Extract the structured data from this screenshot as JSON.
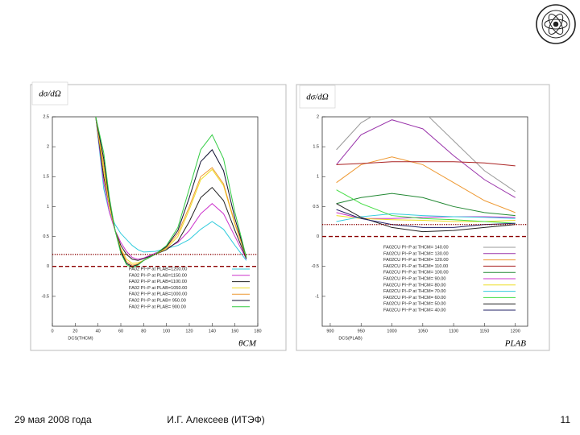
{
  "chart_data": [
    {
      "type": "line",
      "y_label": "dσ/dΩ",
      "x_label": "DCS(THCM)",
      "x_annotation": "θCM",
      "xlim": [
        0,
        180
      ],
      "xticks": [
        0,
        20,
        40,
        60,
        80,
        100,
        120,
        140,
        160,
        180
      ],
      "ylim": [
        -1,
        2.5
      ],
      "yticks": [
        -0.5,
        0,
        0.5,
        1,
        1.5,
        2,
        2.5
      ],
      "x": [
        38,
        45,
        50,
        55,
        60,
        65,
        70,
        75,
        80,
        90,
        100,
        110,
        120,
        130,
        140,
        150,
        160,
        170
      ],
      "series": [
        {
          "name": "FA02 PI−P at PLAB=1200.00",
          "color": "#33ccdd",
          "values": [
            2.5,
            1.3,
            0.9,
            0.7,
            0.55,
            0.45,
            0.35,
            0.28,
            0.24,
            0.25,
            0.3,
            0.35,
            0.45,
            0.62,
            0.75,
            0.62,
            0.35,
            0.1
          ]
        },
        {
          "name": "FA02 PI−P at PLAB=1150.00",
          "color": "#cc33cc",
          "values": [
            2.5,
            1.4,
            0.9,
            0.6,
            0.4,
            0.25,
            0.15,
            0.12,
            0.14,
            0.22,
            0.3,
            0.4,
            0.6,
            0.88,
            1.05,
            0.88,
            0.5,
            0.12
          ]
        },
        {
          "name": "FA02 PI−P at PLAB=1100.00",
          "color": "#222222",
          "values": [
            2.5,
            1.5,
            1.0,
            0.6,
            0.35,
            0.2,
            0.12,
            0.1,
            0.13,
            0.2,
            0.28,
            0.42,
            0.75,
            1.15,
            1.32,
            1.1,
            0.6,
            0.13
          ]
        },
        {
          "name": "FA02 PI−P at PLAB=1050.00",
          "color": "#eedd22",
          "values": [
            2.5,
            1.6,
            1.0,
            0.6,
            0.3,
            0.12,
            0.05,
            0.06,
            0.1,
            0.2,
            0.3,
            0.5,
            0.95,
            1.45,
            1.62,
            1.35,
            0.7,
            0.15
          ]
        },
        {
          "name": "FA02 PI−P at PLAB=1000.00",
          "color": "#ee9933",
          "values": [
            2.5,
            1.7,
            1.05,
            0.6,
            0.28,
            0.08,
            0.02,
            0.04,
            0.1,
            0.2,
            0.32,
            0.55,
            1.0,
            1.5,
            1.65,
            1.38,
            0.72,
            0.15
          ]
        },
        {
          "name": "FA02 PI−P at PLAB= 950.00",
          "color": "#111133",
          "values": [
            2.5,
            1.8,
            1.1,
            0.6,
            0.25,
            0.05,
            0.0,
            0.03,
            0.1,
            0.2,
            0.33,
            0.6,
            1.15,
            1.75,
            1.95,
            1.6,
            0.8,
            0.15
          ]
        },
        {
          "name": "FA02 PI−P at PLAB= 900.00",
          "color": "#33cc44",
          "values": [
            2.5,
            1.9,
            1.15,
            0.6,
            0.22,
            0.03,
            -0.02,
            0.02,
            0.1,
            0.2,
            0.35,
            0.65,
            1.3,
            1.95,
            2.2,
            1.8,
            0.9,
            0.15
          ]
        }
      ],
      "reference_lines": [
        {
          "value": 0.2,
          "style": "dotted",
          "color": "#8b0000"
        },
        {
          "value": 0,
          "style": "dashed",
          "color": "#8b0000"
        }
      ]
    },
    {
      "type": "line",
      "y_label": "dσ/dΩ",
      "x_label": "DCS(PLAB)",
      "x_annotation": "PLAB",
      "xlim": [
        887,
        1220
      ],
      "xticks": [
        900,
        950,
        1000,
        1050,
        1100,
        1150,
        1200
      ],
      "ylim": [
        -1.5,
        2
      ],
      "yticks": [
        -1,
        -0.5,
        0,
        0.5,
        1,
        1.5,
        2
      ],
      "x": [
        910,
        950,
        1000,
        1050,
        1100,
        1150,
        1200
      ],
      "series": [
        {
          "name": "FA02CU PI−P at THCM= 140.00",
          "color": "#999999",
          "values": [
            1.45,
            1.9,
            2.2,
            2.1,
            1.6,
            1.1,
            0.75
          ]
        },
        {
          "name": "FA02CU PI−P at THCM= 130.00",
          "color": "#9933aa",
          "values": [
            1.2,
            1.7,
            1.95,
            1.8,
            1.35,
            0.95,
            0.65
          ]
        },
        {
          "name": "FA02CU PI−P at THCM= 120.00",
          "color": "#ee9933",
          "values": [
            0.9,
            1.2,
            1.33,
            1.2,
            0.9,
            0.6,
            0.4
          ]
        },
        {
          "name": "FA02CU PI−P at THCM= 110.00",
          "color": "#aa2222",
          "values": [
            1.2,
            1.22,
            1.25,
            1.25,
            1.25,
            1.23,
            1.18
          ]
        },
        {
          "name": "FA02CU PI−P at THCM= 100.00",
          "color": "#228833",
          "values": [
            0.55,
            0.65,
            0.72,
            0.65,
            0.5,
            0.4,
            0.35
          ]
        },
        {
          "name": "FA02CU PI−P at THCM= 90.00",
          "color": "#cc33cc",
          "values": [
            0.4,
            0.3,
            0.3,
            0.32,
            0.33,
            0.33,
            0.32
          ]
        },
        {
          "name": "FA02CU PI−P at THCM= 80.00",
          "color": "#eedd22",
          "values": [
            0.35,
            0.3,
            0.28,
            0.27,
            0.25,
            0.25,
            0.27
          ]
        },
        {
          "name": "FA02CU PI−P at THCM= 70.00",
          "color": "#33ccdd",
          "values": [
            0.25,
            0.33,
            0.38,
            0.35,
            0.33,
            0.32,
            0.3
          ]
        },
        {
          "name": "FA02CU PI−P at THCM= 60.00",
          "color": "#44dd44",
          "values": [
            0.78,
            0.55,
            0.35,
            0.3,
            0.28,
            0.25,
            0.22
          ]
        },
        {
          "name": "FA02CU PI−P at THCM= 50.00",
          "color": "#222222",
          "values": [
            0.55,
            0.32,
            0.15,
            0.08,
            0.1,
            0.15,
            0.2
          ]
        },
        {
          "name": "FA02CU PI−P at THCM= 40.00",
          "color": "#222266",
          "values": [
            0.45,
            0.3,
            0.2,
            0.15,
            0.15,
            0.2,
            0.22
          ]
        }
      ],
      "reference_lines": [
        {
          "value": 0.2,
          "style": "dotted",
          "color": "#8b0000"
        },
        {
          "value": 0,
          "style": "dashed",
          "color": "#8b0000"
        }
      ]
    }
  ],
  "footer": {
    "date": "29 мая 2008 года",
    "author": "И.Г. Алексеев (ИТЭФ)",
    "page": "11"
  }
}
